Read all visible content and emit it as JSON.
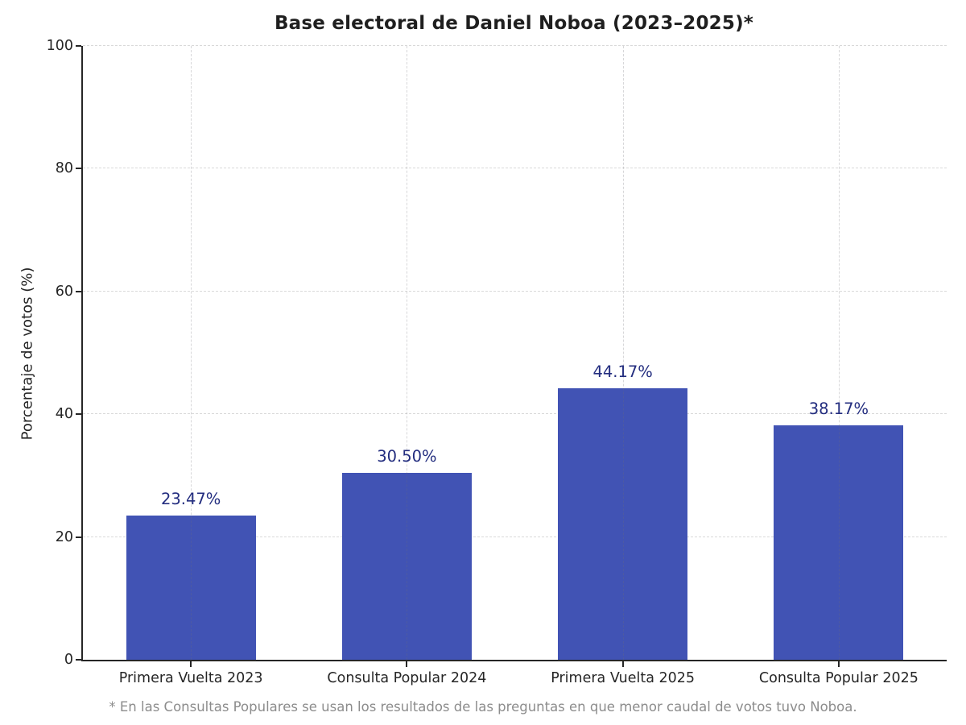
{
  "title": "Base electoral de Daniel Noboa (2023–2025)*",
  "footnote": "* En las Consultas Populares se usan los resultados de las preguntas en que menor caudal de votos tuvo Noboa.",
  "colors": {
    "bar": "#4153b4",
    "value_label": "#232d7f",
    "axis": "#262626",
    "grid": "#d9d9d9",
    "title": "#1f1f1f",
    "footnote": "#8c8c8c"
  },
  "chart_data": {
    "type": "bar",
    "title": "Base electoral de Daniel Noboa (2023–2025)*",
    "categories": [
      "Primera Vuelta 2023",
      "Consulta Popular 2024",
      "Primera Vuelta 2025",
      "Consulta Popular 2025"
    ],
    "values": [
      23.47,
      30.5,
      44.17,
      38.17
    ],
    "value_labels": [
      "23.47%",
      "30.50%",
      "44.17%",
      "38.17%"
    ],
    "xlabel": "",
    "ylabel": "Porcentaje de votos (%)",
    "ylim": [
      0,
      100
    ],
    "yticks": [
      0,
      20,
      40,
      60,
      80,
      100
    ],
    "bar_width_fraction": 0.6,
    "grid": "dashed horizontal lines at yticks, dashed vertical lines at bar centers",
    "legend": "none",
    "annotation": "* En las Consultas Populares se usan los resultados de las preguntas en que menor caudal de votos tuvo Noboa."
  }
}
